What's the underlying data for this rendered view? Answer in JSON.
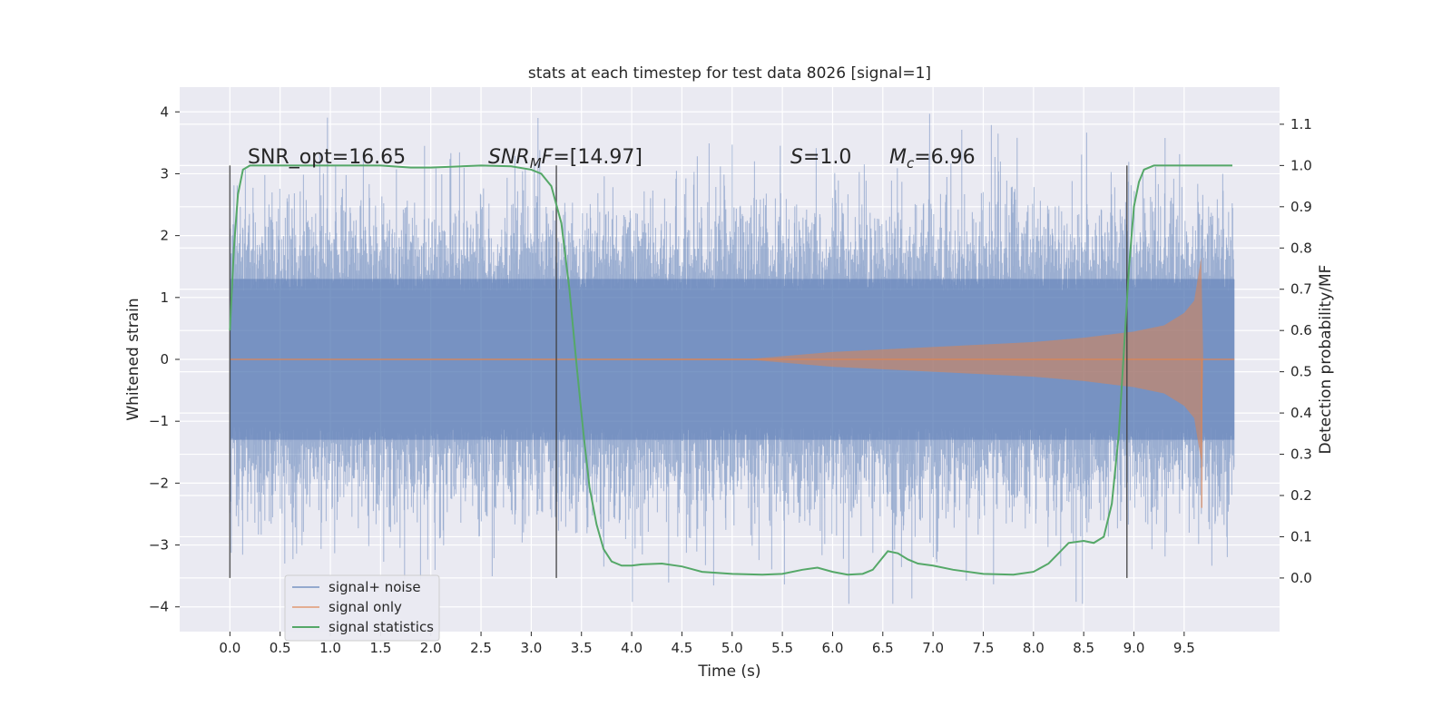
{
  "chart_data": {
    "type": "line",
    "title": "stats at each timestep for test data 8026 [signal=1]",
    "xlabel": "Time (s)",
    "ylabel": "Whitened strain",
    "ylabel_right": "Detection probability/MF",
    "xlim": [
      -0.5,
      10.45
    ],
    "ylim": [
      -4.4,
      4.4
    ],
    "ylim_right": [
      -0.13,
      1.19
    ],
    "x_ticks": [
      "0.0",
      "0.5",
      "1.0",
      "1.5",
      "2.0",
      "2.5",
      "3.0",
      "3.5",
      "4.0",
      "4.5",
      "5.0",
      "5.5",
      "6.0",
      "6.5",
      "7.0",
      "7.5",
      "8.0",
      "8.5",
      "9.0",
      "9.5"
    ],
    "y_ticks": [
      "4",
      "3",
      "2",
      "1",
      "0",
      "−1",
      "−2",
      "−3",
      "−4"
    ],
    "y_ticks_right": [
      "1.1",
      "1.0",
      "0.9",
      "0.8",
      "0.7",
      "0.6",
      "0.5",
      "0.4",
      "0.3",
      "0.2",
      "0.1",
      "0.0"
    ],
    "grid": true,
    "legend_position": "bottom-left",
    "annotations": {
      "snr_opt": "SNR_opt=16.65",
      "snr_mf_main": "SNR",
      "snr_mf_sub": "M",
      "snr_mf_f": "F",
      "snr_mf_value": "=[14.97]",
      "s_label": "S",
      "s_value": "=1.0",
      "mc_main": "M",
      "mc_sub": "c",
      "mc_value": "=6.96"
    },
    "vertical_lines_x": [
      0.0,
      3.25,
      8.93
    ],
    "series": [
      {
        "name": "signal+ noise",
        "color": "#4c72b0",
        "axis": "left",
        "description_values": {
          "x_range": [
            0.0,
            10.0
          ],
          "typical_abs": 1.3,
          "max": 4.05,
          "min": -3.95
        }
      },
      {
        "name": "signal only",
        "color": "#dd8452",
        "axis": "left",
        "envelope": {
          "x": [
            0.0,
            5.2,
            6.0,
            7.0,
            8.0,
            8.5,
            9.0,
            9.3,
            9.5,
            9.6,
            9.67,
            9.69,
            10.0
          ],
          "amp": [
            0.0,
            0.01,
            0.12,
            0.2,
            0.28,
            0.35,
            0.45,
            0.55,
            0.75,
            0.95,
            1.65,
            0.0,
            0.0
          ]
        }
      },
      {
        "name": "signal statistics",
        "color": "#55a868",
        "axis": "right",
        "x": [
          0.0,
          0.04,
          0.08,
          0.13,
          0.2,
          0.4,
          0.7,
          1.0,
          1.5,
          1.8,
          2.0,
          2.2,
          2.5,
          2.8,
          3.0,
          3.1,
          3.2,
          3.3,
          3.38,
          3.45,
          3.52,
          3.58,
          3.65,
          3.72,
          3.8,
          3.9,
          4.0,
          4.1,
          4.3,
          4.5,
          4.7,
          5.0,
          5.3,
          5.5,
          5.7,
          5.85,
          6.0,
          6.15,
          6.3,
          6.4,
          6.5,
          6.55,
          6.65,
          6.75,
          6.85,
          7.0,
          7.2,
          7.5,
          7.8,
          8.0,
          8.15,
          8.25,
          8.35,
          8.5,
          8.6,
          8.7,
          8.78,
          8.85,
          8.9,
          8.95,
          9.0,
          9.05,
          9.1,
          9.2,
          9.4,
          9.6,
          9.8,
          9.98
        ],
        "values": [
          0.6,
          0.8,
          0.93,
          0.99,
          1.0,
          1.0,
          1.0,
          1.0,
          1.0,
          0.995,
          0.995,
          0.997,
          1.0,
          0.998,
          0.99,
          0.98,
          0.95,
          0.86,
          0.7,
          0.52,
          0.35,
          0.22,
          0.13,
          0.07,
          0.04,
          0.03,
          0.03,
          0.033,
          0.035,
          0.028,
          0.015,
          0.01,
          0.008,
          0.01,
          0.02,
          0.025,
          0.015,
          0.008,
          0.01,
          0.02,
          0.05,
          0.065,
          0.06,
          0.045,
          0.035,
          0.03,
          0.02,
          0.01,
          0.008,
          0.015,
          0.035,
          0.06,
          0.085,
          0.09,
          0.085,
          0.1,
          0.18,
          0.35,
          0.55,
          0.75,
          0.9,
          0.96,
          0.99,
          1.0,
          1.0,
          1.0,
          1.0,
          1.0
        ]
      }
    ]
  },
  "colors": {
    "axes_bg": "#eaeaf2",
    "grid": "#ffffff",
    "noise": "#4c72b0",
    "signal": "#dd8452",
    "stat": "#55a868",
    "vline": "#404040"
  }
}
